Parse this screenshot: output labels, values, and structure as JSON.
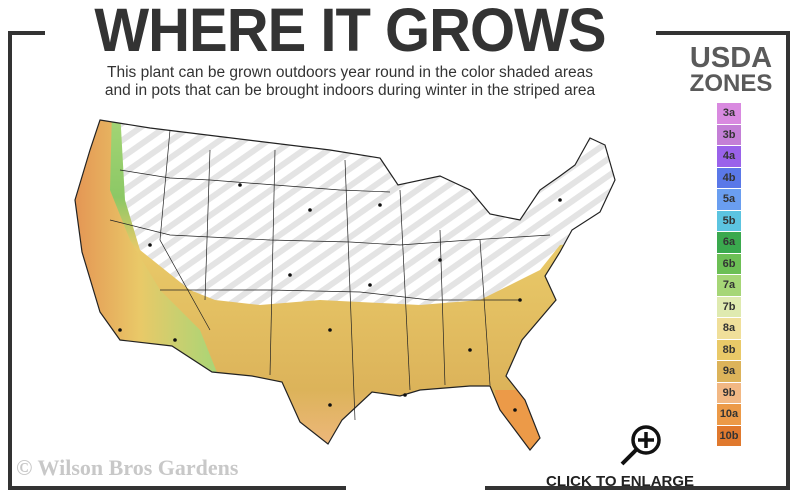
{
  "header": {
    "title": "WHERE IT GROWS",
    "subtitle_line1": "This plant can be grown outdoors year round in the color shaded areas",
    "subtitle_line2": "and in pots that can be brought indoors during winter in the striped area"
  },
  "legend": {
    "title_line1": "USDA",
    "title_line2": "ZONES",
    "zones": [
      {
        "label": "3a",
        "color": "#d98ae0"
      },
      {
        "label": "3b",
        "color": "#c47fd6"
      },
      {
        "label": "4a",
        "color": "#9a62ea"
      },
      {
        "label": "4b",
        "color": "#5a78e8"
      },
      {
        "label": "5a",
        "color": "#6a9ef0"
      },
      {
        "label": "5b",
        "color": "#5cc4e0"
      },
      {
        "label": "6a",
        "color": "#3aa94e"
      },
      {
        "label": "6b",
        "color": "#6cbf55"
      },
      {
        "label": "7a",
        "color": "#a6d677"
      },
      {
        "label": "7b",
        "color": "#dfeab0"
      },
      {
        "label": "8a",
        "color": "#f0df9a"
      },
      {
        "label": "8b",
        "color": "#e9c968"
      },
      {
        "label": "9a",
        "color": "#dcb35a"
      },
      {
        "label": "9b",
        "color": "#f2b884"
      },
      {
        "label": "10a",
        "color": "#ec9a48"
      },
      {
        "label": "10b",
        "color": "#e0792e"
      }
    ]
  },
  "footer": {
    "copyright": "© Wilson Bros Gardens",
    "enlarge_label": "CLICK TO ENLARGE",
    "enlarge_icon": "magnifier-plus-icon"
  },
  "map": {
    "striped_area": "pots indoors during winter",
    "shaded_area": "outdoors year round"
  }
}
